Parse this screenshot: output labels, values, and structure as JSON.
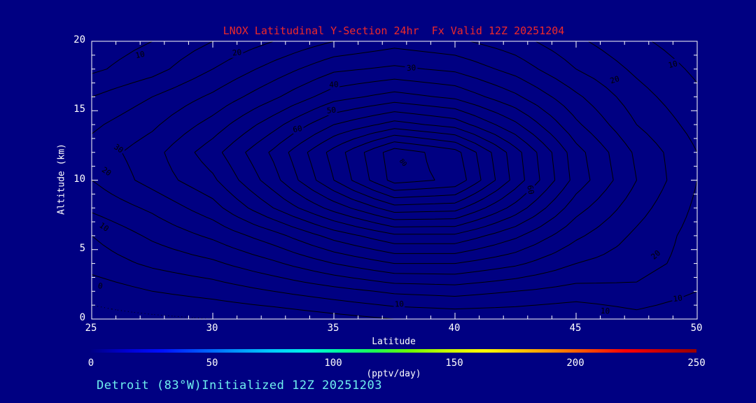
{
  "header": {
    "title": "LNOX Latitudinal Y-Section 24hr  Fx Valid 12Z 20251204"
  },
  "footer": {
    "text": "Detroit (83°W)Initialized 12Z 20251203"
  },
  "colors": {
    "background": "#000082",
    "frame": "#ffffff",
    "contour_line": "#000000",
    "title_red": "#ef2929",
    "text_white": "#ffffff",
    "footer_cyan": "#6fefef"
  },
  "chart_data": {
    "type": "contour",
    "title": "LNOX Latitudinal Y-Section 24hr  Fx Valid 12Z 20251204",
    "xlabel": "Latitude",
    "ylabel": "Altitude (km)",
    "xlim": [
      25,
      50
    ],
    "ylim": [
      0,
      20
    ],
    "xticks": [
      25,
      30,
      35,
      40,
      45,
      50
    ],
    "yticks": [
      0,
      5,
      10,
      15,
      20
    ],
    "x_minor_step": 1,
    "y_minor_step": 1,
    "grid_on": false,
    "units": "pptv/day",
    "grid_lat": [
      25,
      27.5,
      30,
      32.5,
      35,
      37.5,
      40,
      42.5,
      45,
      47.5,
      50
    ],
    "grid_alt": [
      0,
      2,
      4,
      6,
      8,
      10,
      12,
      14,
      16,
      18,
      20
    ],
    "values": [
      [
        -2,
        -1,
        0,
        1,
        3,
        5,
        6,
        6,
        5,
        8,
        6
      ],
      [
        2,
        5,
        7,
        10,
        13,
        16,
        17,
        15,
        13,
        14,
        10
      ],
      [
        7,
        11,
        14,
        19,
        25,
        30,
        30,
        26,
        20,
        17,
        13
      ],
      [
        10,
        16,
        21,
        28,
        37,
        44,
        44,
        36,
        26,
        19,
        13
      ],
      [
        16,
        21,
        28,
        40,
        52,
        63,
        62,
        48,
        32,
        22,
        14
      ],
      [
        20,
        27,
        34,
        48,
        65,
        82,
        79,
        58,
        38,
        25,
        15
      ],
      [
        22,
        28,
        38,
        51,
        67,
        83,
        77,
        57,
        37,
        24,
        15
      ],
      [
        19,
        24,
        32,
        43,
        55,
        62,
        58,
        46,
        31,
        20,
        13
      ],
      [
        15,
        20,
        26,
        34,
        43,
        47,
        44,
        36,
        26,
        17,
        11
      ],
      [
        9,
        13,
        20,
        27,
        34,
        36,
        34,
        28,
        20,
        14,
        9
      ],
      [
        7,
        10,
        15,
        20,
        25,
        28,
        26,
        22,
        16,
        11,
        7
      ]
    ],
    "levels": [
      0,
      5,
      10,
      15,
      20,
      25,
      30,
      35,
      40,
      45,
      50,
      55,
      60,
      65,
      70,
      75,
      80
    ],
    "labeled_levels": [
      0,
      10,
      20,
      30,
      40,
      50,
      60,
      80
    ],
    "zero_level_style": "dotted",
    "peak": {
      "lat": 38,
      "alt": 11.2,
      "value": 85
    },
    "contour_labels": [
      {
        "lat": 27.0,
        "alt": 19.0,
        "text": "10",
        "rot": -12
      },
      {
        "lat": 31.0,
        "alt": 19.15,
        "text": "20",
        "rot": -7
      },
      {
        "lat": 38.2,
        "alt": 18.05,
        "text": "30",
        "rot": -4
      },
      {
        "lat": 35.0,
        "alt": 16.85,
        "text": "40",
        "rot": -3
      },
      {
        "lat": 34.9,
        "alt": 15.0,
        "text": "50",
        "rot": -6
      },
      {
        "lat": 33.5,
        "alt": 13.65,
        "text": "60",
        "rot": -10
      },
      {
        "lat": 37.85,
        "alt": 11.25,
        "text": "80",
        "rot": 50,
        "size": 9
      },
      {
        "lat": 43.1,
        "alt": 9.3,
        "text": "60",
        "rot": 80
      },
      {
        "lat": 49.0,
        "alt": 18.3,
        "text": "10",
        "rot": -14
      },
      {
        "lat": 46.6,
        "alt": 17.2,
        "text": "20",
        "rot": -18
      },
      {
        "lat": 48.3,
        "alt": 4.6,
        "text": "20",
        "rot": -42
      },
      {
        "lat": 49.2,
        "alt": 1.45,
        "text": "10",
        "rot": -8
      },
      {
        "lat": 46.2,
        "alt": 0.55,
        "text": "10",
        "rot": 3
      },
      {
        "lat": 37.7,
        "alt": 1.05,
        "text": "10",
        "rot": -3
      },
      {
        "lat": 26.1,
        "alt": 12.25,
        "text": "30",
        "rot": 35
      },
      {
        "lat": 25.6,
        "alt": 10.6,
        "text": "20",
        "rot": 35
      },
      {
        "lat": 25.5,
        "alt": 6.6,
        "text": "10",
        "rot": 35
      },
      {
        "lat": 25.35,
        "alt": 2.35,
        "text": "0",
        "rot": 12
      }
    ],
    "colorbar": {
      "min": 0,
      "max": 250,
      "ticks": [
        0,
        50,
        100,
        150,
        200,
        250
      ],
      "label": "(pptv/day)",
      "gradient": [
        "#000085",
        "#0000d0",
        "#0010ff",
        "#0050ff",
        "#0090ff",
        "#00c8ff",
        "#00f0e8",
        "#00ff9c",
        "#20ff50",
        "#70ff00",
        "#c8ff00",
        "#ffff00",
        "#ffc800",
        "#ff8c00",
        "#ff4600",
        "#ff0000",
        "#c80000",
        "#960000"
      ]
    }
  }
}
